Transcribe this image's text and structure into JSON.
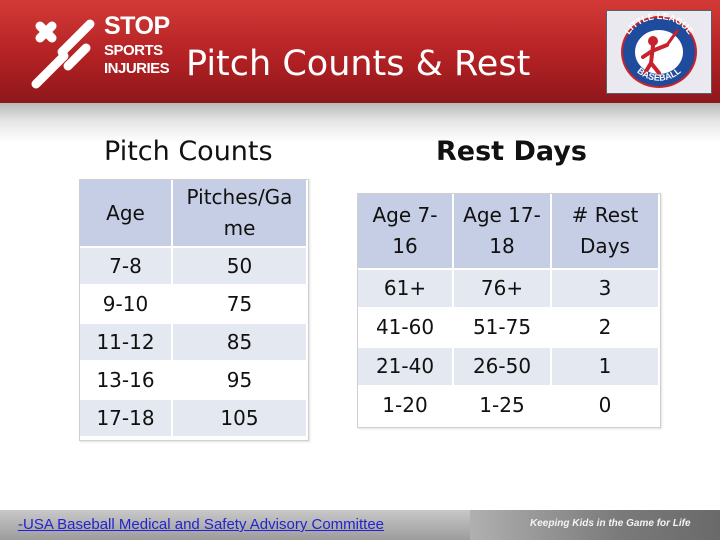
{
  "header": {
    "logo": {
      "line1": "STOP",
      "line2": "SPORTS",
      "line3": "INJURIES"
    },
    "title": "Pitch Counts & Rest",
    "badge": {
      "top_text": "LITTLE LEAGUE",
      "bottom_text": "BASEBALL"
    }
  },
  "pitch_counts": {
    "title": "Pitch Counts",
    "headers": [
      "Age",
      "Pitches/Ga me"
    ],
    "rows": [
      [
        "7-8",
        "50"
      ],
      [
        "9-10",
        "75"
      ],
      [
        "11-12",
        "85"
      ],
      [
        "13-16",
        "95"
      ],
      [
        "17-18",
        "105"
      ]
    ]
  },
  "rest_days": {
    "title": "Rest Days",
    "headers": [
      "Age 7- 16",
      "Age 17- 18",
      "# Rest Days"
    ],
    "rows": [
      [
        "61+",
        "76+",
        "3"
      ],
      [
        "41-60",
        "51-75",
        "2"
      ],
      [
        "21-40",
        "26-50",
        "1"
      ],
      [
        "1-20",
        "1-25",
        "0"
      ]
    ]
  },
  "footer": {
    "citation": "-USA Baseball Medical and Safety Advisory Committee",
    "tagline": "Keeping Kids in the Game for Life"
  },
  "colors": {
    "header_red": "#b32124",
    "table_header": "#c5cee5",
    "table_stripe": "#e4e8f1",
    "citation_blue": "#2323d0"
  }
}
